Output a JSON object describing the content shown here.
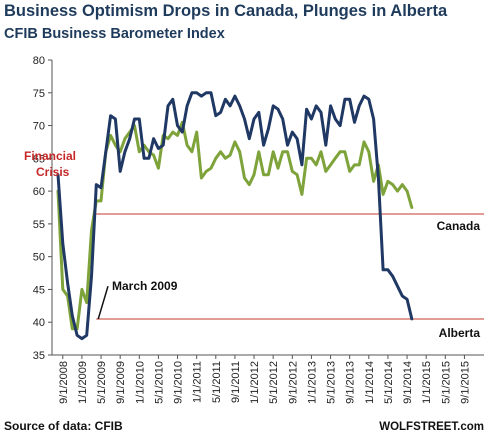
{
  "title": "Business Optimism Drops in Canada, Plunges in Alberta",
  "subtitle": "CFIB Business Barometer Index",
  "source": "Source of data: CFIB",
  "watermark": "WOLFSTREET.com",
  "chart_data": {
    "type": "line",
    "ylim": [
      35,
      80
    ],
    "yticks": [
      35,
      40,
      45,
      50,
      55,
      60,
      65,
      70,
      75,
      80
    ],
    "x_tick_labels": [
      "9/1/2008",
      "1/1/2009",
      "5/1/2009",
      "9/1/2009",
      "1/1/2010",
      "5/1/2010",
      "9/1/2010",
      "1/1/2011",
      "5/1/2011",
      "9/1/2011",
      "1/1/2012",
      "5/1/2012",
      "9/1/2012",
      "1/1/2013",
      "5/1/2013",
      "9/1/2013",
      "1/1/2014",
      "5/1/2014",
      "9/1/2014",
      "1/1/2015",
      "5/1/2015",
      "9/1/2015"
    ],
    "x_start": "2008-08",
    "series": [
      {
        "name": "Alberta",
        "color": "#1f3864",
        "values": [
          62.5,
          52,
          46,
          41,
          38,
          37.5,
          38,
          47,
          61,
          60.5,
          66,
          71.5,
          71,
          63,
          66,
          68,
          71,
          71,
          65,
          65,
          68,
          66.5,
          67,
          73,
          74,
          70,
          69,
          73,
          75,
          75,
          74.5,
          75,
          75,
          71.5,
          72,
          74,
          73,
          74.5,
          73,
          71,
          68,
          71,
          72,
          67,
          69.5,
          73,
          72.5,
          71,
          67,
          69,
          68,
          64,
          72.5,
          71,
          73,
          72,
          67,
          73,
          71,
          70,
          74,
          74,
          70.5,
          73,
          74.5,
          74,
          71,
          62,
          48,
          48,
          47,
          45.5,
          44,
          43.5,
          40.5
        ]
      },
      {
        "name": "Canada",
        "color": "#7ea33b",
        "values": [
          60,
          45,
          44,
          39,
          39,
          45,
          43,
          54,
          58.5,
          58.5,
          66,
          68.5,
          67,
          66,
          68,
          69,
          70,
          66,
          67,
          66,
          65.5,
          63.5,
          68.5,
          68,
          69,
          68.5,
          70.5,
          67,
          66,
          69,
          62,
          63,
          63.5,
          65,
          66,
          65,
          65.5,
          67.5,
          66,
          62,
          61,
          62.5,
          66,
          62.5,
          62.5,
          66,
          63.5,
          66,
          66,
          63,
          62.5,
          59.5,
          65,
          65,
          64,
          66,
          63,
          64,
          65,
          66,
          66,
          63,
          64,
          64,
          67.5,
          66,
          61.5,
          64,
          59.5,
          61.5,
          61,
          60,
          61,
          60,
          57.5
        ]
      }
    ],
    "reference_lines": [
      {
        "label": "Canada",
        "value": 56.5,
        "color": "#c0392b"
      },
      {
        "label": "Alberta",
        "value": 40.5,
        "color": "#c0392b"
      }
    ],
    "annotations": [
      {
        "text_lines": [
          "Financial",
          "Crisis"
        ],
        "color": "#c62828"
      },
      {
        "text_lines": [
          "March 2009"
        ],
        "color": "#111111"
      }
    ],
    "grid": false
  }
}
